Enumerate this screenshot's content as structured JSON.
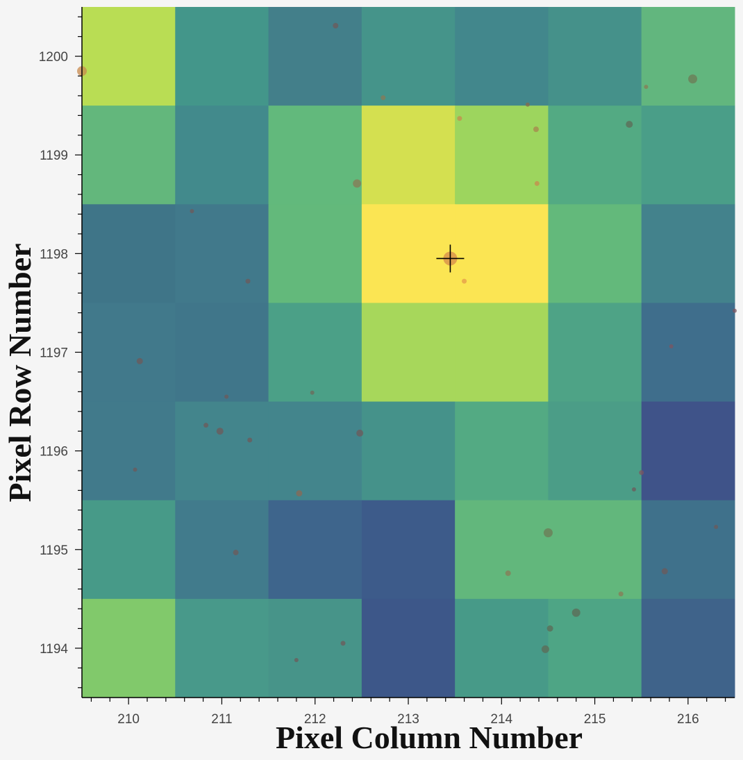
{
  "chart_data": {
    "type": "heatmap",
    "xlabel": "Pixel Column Number",
    "ylabel": "Pixel Row Number",
    "xlim": [
      209.5,
      216.5
    ],
    "ylim": [
      1193.5,
      1200.5
    ],
    "x_ticks": [
      "210",
      "211",
      "212",
      "213",
      "214",
      "215",
      "216"
    ],
    "y_ticks": [
      "1194",
      "1195",
      "1196",
      "1197",
      "1198",
      "1199",
      "1200"
    ],
    "columns": [
      210,
      211,
      212,
      213,
      214,
      215,
      216
    ],
    "rows": [
      1200,
      1199,
      1198,
      1197,
      1196,
      1195,
      1194
    ],
    "cell_colors": [
      [
        "#b9dd54",
        "#43968a",
        "#437f8a",
        "#45948a",
        "#42878c",
        "#45918a",
        "#62b67e"
      ],
      [
        "#63b77c",
        "#428a8c",
        "#62b97c",
        "#d4e050",
        "#9dd55e",
        "#53aa83",
        "#4a9e88"
      ],
      [
        "#3f7588",
        "#41798b",
        "#63b97b",
        "#fbe553",
        "#fbe553",
        "#63b97b",
        "#43828c"
      ],
      [
        "#41798b",
        "#40768a",
        "#4ba087",
        "#a7d75b",
        "#a7d75b",
        "#4ea386",
        "#3f6e8c"
      ],
      [
        "#417a8b",
        "#43858c",
        "#43858c",
        "#45928a",
        "#53aa83",
        "#4b9d87",
        "#3f5389"
      ],
      [
        "#479a88",
        "#417b8c",
        "#3e658c",
        "#3d5b8a",
        "#62b77c",
        "#62b77c",
        "#3f718b"
      ],
      [
        "#81c96b",
        "#48998a",
        "#479489",
        "#3d5789",
        "#479a88",
        "#4ea585",
        "#3f638a"
      ]
    ],
    "target": {
      "x": 213.45,
      "y": 1197.95
    },
    "sources": [
      {
        "x": 209.5,
        "y": 1199.85,
        "s": 7,
        "c": "#c8894e"
      },
      {
        "x": 212.22,
        "y": 1200.31,
        "s": 4,
        "c": "#6e5a5a"
      },
      {
        "x": 212.73,
        "y": 1199.58,
        "s": 3.5,
        "c": "#8a7a55"
      },
      {
        "x": 214.28,
        "y": 1199.51,
        "s": 3,
        "c": "#8a6a4a"
      },
      {
        "x": 215.55,
        "y": 1199.69,
        "s": 3,
        "c": "#8a7a55"
      },
      {
        "x": 216.05,
        "y": 1199.77,
        "s": 6.5,
        "c": "#6e7a55"
      },
      {
        "x": 213.55,
        "y": 1199.37,
        "s": 3.5,
        "c": "#c8894e"
      },
      {
        "x": 214.37,
        "y": 1199.26,
        "s": 4,
        "c": "#a8844e"
      },
      {
        "x": 215.37,
        "y": 1199.31,
        "s": 5,
        "c": "#5e6a55"
      },
      {
        "x": 212.45,
        "y": 1198.71,
        "s": 6,
        "c": "#8a7a55"
      },
      {
        "x": 214.38,
        "y": 1198.71,
        "s": 3.5,
        "c": "#c8894e"
      },
      {
        "x": 210.68,
        "y": 1198.43,
        "s": 3,
        "c": "#6e5a5a"
      },
      {
        "x": 211.28,
        "y": 1197.72,
        "s": 3.5,
        "c": "#6e5a5a"
      },
      {
        "x": 213.45,
        "y": 1197.95,
        "s": 10,
        "c": "#d58a4b"
      },
      {
        "x": 213.6,
        "y": 1197.72,
        "s": 3.5,
        "c": "#e49a4a"
      },
      {
        "x": 210.12,
        "y": 1196.91,
        "s": 4.5,
        "c": "#6e5a5a"
      },
      {
        "x": 215.82,
        "y": 1197.06,
        "s": 3,
        "c": "#7e5560"
      },
      {
        "x": 216.5,
        "y": 1197.42,
        "s": 3,
        "c": "#7e5560"
      },
      {
        "x": 211.05,
        "y": 1196.55,
        "s": 3,
        "c": "#6e5a5a"
      },
      {
        "x": 211.97,
        "y": 1196.59,
        "s": 3,
        "c": "#6e6a5a"
      },
      {
        "x": 210.83,
        "y": 1196.26,
        "s": 3.5,
        "c": "#6e5a5a"
      },
      {
        "x": 210.98,
        "y": 1196.2,
        "s": 5,
        "c": "#6e5a5a"
      },
      {
        "x": 211.3,
        "y": 1196.11,
        "s": 3.5,
        "c": "#6e5a5a"
      },
      {
        "x": 212.48,
        "y": 1196.18,
        "s": 5,
        "c": "#6e5a5a"
      },
      {
        "x": 210.07,
        "y": 1195.81,
        "s": 3,
        "c": "#6e5a5a"
      },
      {
        "x": 215.5,
        "y": 1195.78,
        "s": 3.5,
        "c": "#7e5560"
      },
      {
        "x": 215.42,
        "y": 1195.61,
        "s": 3,
        "c": "#6e5a5a"
      },
      {
        "x": 211.83,
        "y": 1195.57,
        "s": 4.5,
        "c": "#8a6a55"
      },
      {
        "x": 214.5,
        "y": 1195.17,
        "s": 6.5,
        "c": "#6e7a55"
      },
      {
        "x": 216.3,
        "y": 1195.23,
        "s": 3,
        "c": "#6e5a5a"
      },
      {
        "x": 211.15,
        "y": 1194.97,
        "s": 4,
        "c": "#6e5a5a"
      },
      {
        "x": 214.07,
        "y": 1194.76,
        "s": 4,
        "c": "#8a7a55"
      },
      {
        "x": 215.75,
        "y": 1194.78,
        "s": 4.5,
        "c": "#6e5a5a"
      },
      {
        "x": 215.28,
        "y": 1194.55,
        "s": 3.5,
        "c": "#8a7a55"
      },
      {
        "x": 214.8,
        "y": 1194.36,
        "s": 6,
        "c": "#5e6a55"
      },
      {
        "x": 214.52,
        "y": 1194.2,
        "s": 4.5,
        "c": "#5e6a55"
      },
      {
        "x": 212.3,
        "y": 1194.05,
        "s": 3.5,
        "c": "#6e5a5a"
      },
      {
        "x": 214.47,
        "y": 1193.99,
        "s": 5.5,
        "c": "#5e6a55"
      },
      {
        "x": 211.8,
        "y": 1193.88,
        "s": 3,
        "c": "#6e5a5a"
      }
    ],
    "grid": false,
    "legend": "none"
  }
}
